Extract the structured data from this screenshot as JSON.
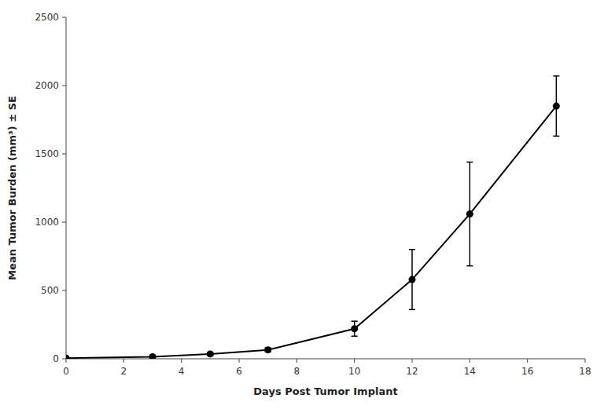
{
  "chart_data": {
    "type": "line",
    "xlabel": "Days Post Tumor Implant",
    "ylabel": "Mean Tumor Burden (mm³) ± SE",
    "x": [
      0,
      3,
      5,
      7,
      10,
      12,
      14,
      17
    ],
    "values": [
      5,
      15,
      35,
      65,
      220,
      580,
      1060,
      1850
    ],
    "errors": [
      3,
      8,
      12,
      15,
      55,
      220,
      380,
      220
    ],
    "xlim": [
      0,
      18
    ],
    "ylim": [
      0,
      2500
    ],
    "xticks": [
      0,
      2,
      4,
      6,
      8,
      10,
      12,
      14,
      16,
      18
    ],
    "yticks": [
      0,
      500,
      1000,
      1500,
      2000,
      2500
    ],
    "color": "#000000",
    "marker": "circle",
    "line_style": "solid",
    "grid": false
  }
}
